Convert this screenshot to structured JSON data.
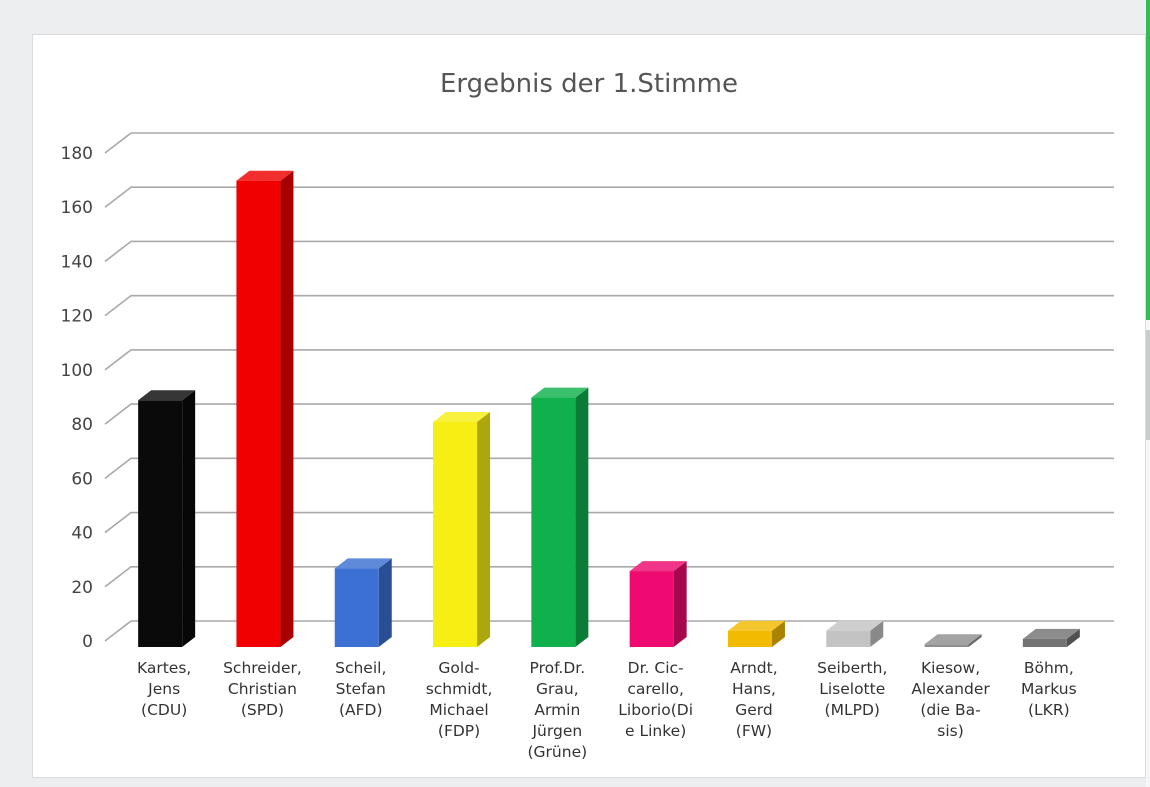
{
  "chart_data": {
    "type": "bar",
    "title": "Ergebnis der 1.Stimme",
    "xlabel": "",
    "ylabel": "",
    "ylim": [
      0,
      180
    ],
    "yticks": [
      0,
      20,
      40,
      60,
      80,
      100,
      120,
      140,
      160,
      180
    ],
    "grid": true,
    "legend": "none",
    "style": "3d-column",
    "categories": [
      [
        "Kartes,",
        "Jens",
        "(CDU)"
      ],
      [
        "Schreider,",
        "Christian",
        "(SPD)"
      ],
      [
        "Scheil,",
        "Stefan",
        "(AFD)"
      ],
      [
        "Gold-",
        "schmidt,",
        "Michael",
        "(FDP)"
      ],
      [
        "Prof.Dr.",
        "Grau,",
        "Armin",
        "Jürgen",
        "(Grüne)"
      ],
      [
        "Dr. Cic-",
        "carello,",
        "Liborio(Di",
        "e Linke)"
      ],
      [
        "Arndt,",
        "Hans,",
        "Gerd",
        "(FW)"
      ],
      [
        "Seiberth,",
        "Liselotte",
        "(MLPD)"
      ],
      [
        "Kiesow,",
        "Alexander",
        "(die Ba-",
        "sis)"
      ],
      [
        "Böhm,",
        "Markus",
        "(LKR)"
      ]
    ],
    "values": [
      91,
      172,
      29,
      83,
      92,
      28,
      6,
      6,
      1,
      3
    ],
    "colors": [
      "#0a0a0a",
      "#f00000",
      "#3c70d2",
      "#f7ef14",
      "#10b14c",
      "#ee0a70",
      "#f2ba00",
      "#c3c3c3",
      "#8f8f8f",
      "#737373"
    ]
  }
}
